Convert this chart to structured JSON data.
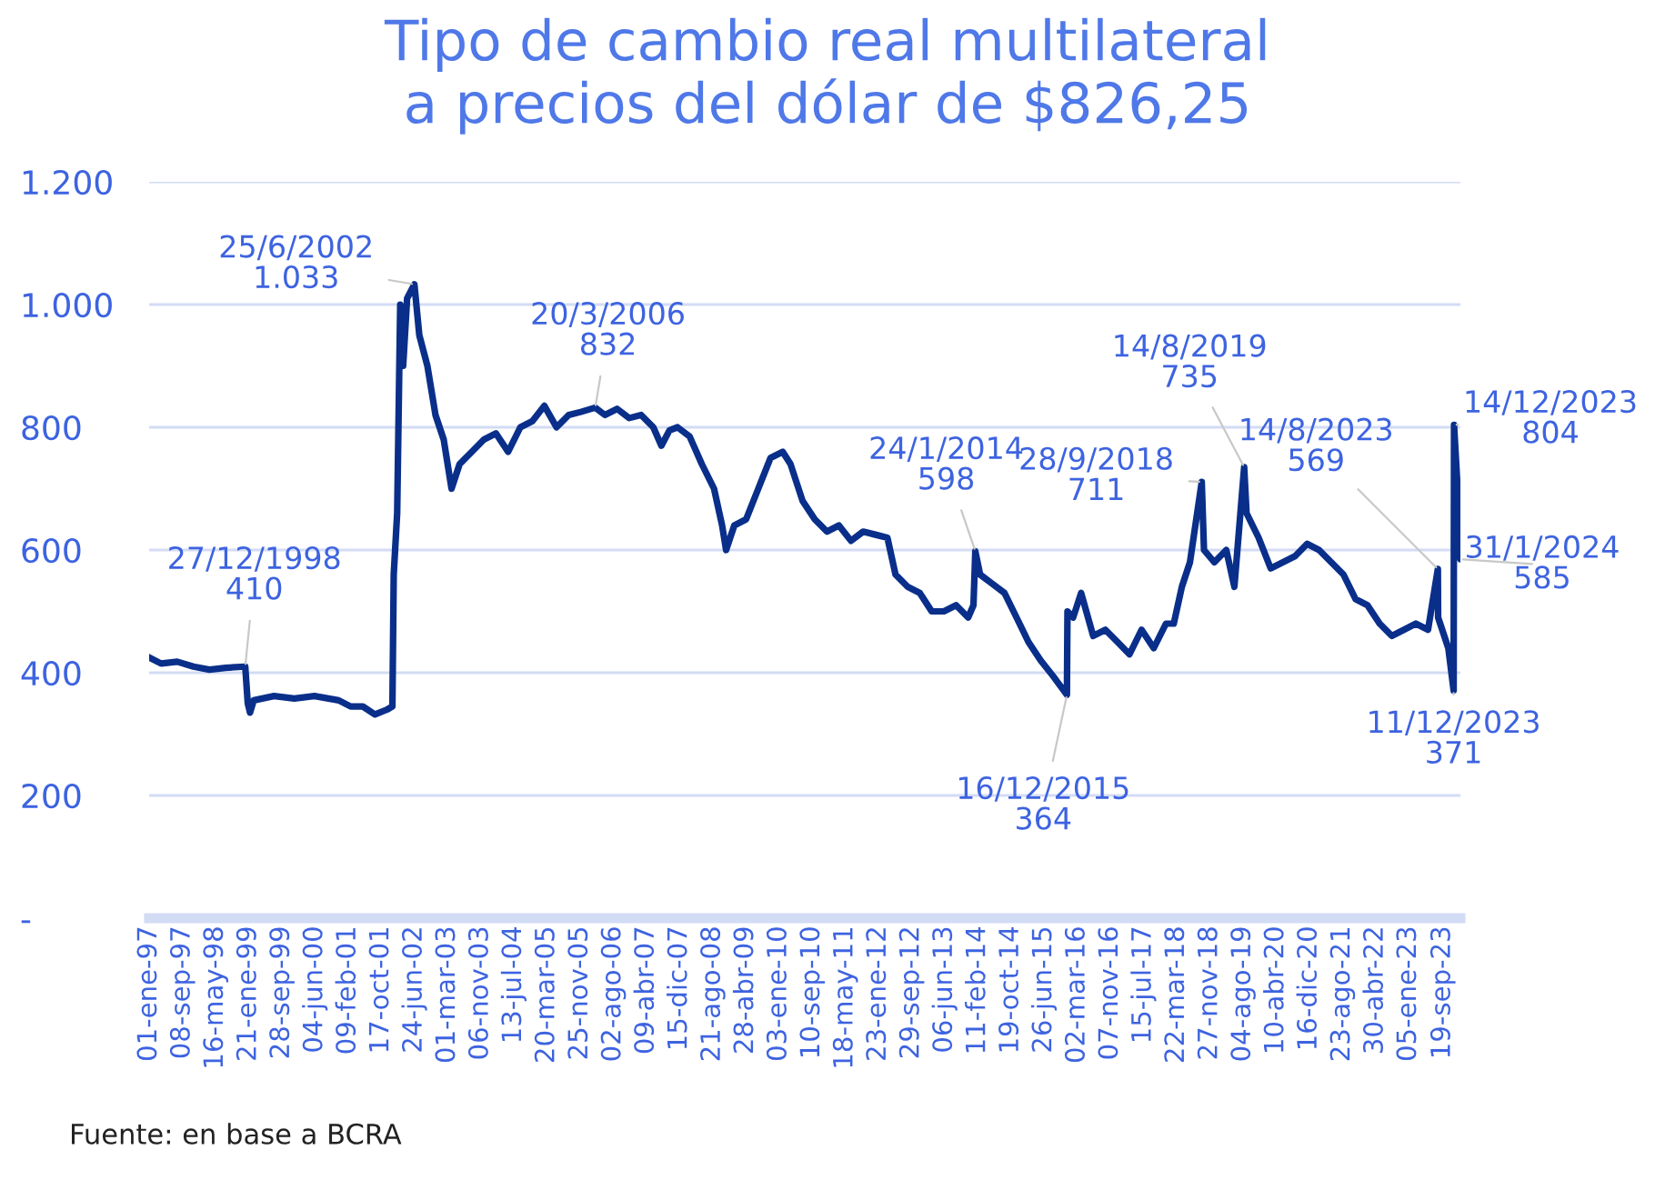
{
  "chart_data": {
    "type": "line",
    "title": "Tipo de cambio real multilateral\na precios del dólar de $826,25",
    "x": [
      "1997-01-01",
      "1997-04-01",
      "1997-08-01",
      "1997-12-01",
      "1998-04-01",
      "1998-08-01",
      "1998-12-27",
      "1999-01-15",
      "1999-02-01",
      "1999-03-01",
      "1999-08-01",
      "2000-01-01",
      "2000-06-01",
      "2000-12-01",
      "2001-03-01",
      "2001-06-01",
      "2001-09-01",
      "2001-12-01",
      "2002-01-10",
      "2002-01-20",
      "2002-02-15",
      "2002-03-10",
      "2002-04-01",
      "2002-05-01",
      "2002-06-25",
      "2002-08-01",
      "2002-10-01",
      "2002-12-01",
      "2003-02-01",
      "2003-04-01",
      "2003-06-01",
      "2003-09-01",
      "2003-12-01",
      "2004-03-01",
      "2004-06-01",
      "2004-09-01",
      "2004-12-01",
      "2005-03-01",
      "2005-06-01",
      "2005-09-01",
      "2005-12-01",
      "2006-03-20",
      "2006-06-01",
      "2006-09-01",
      "2006-12-01",
      "2007-03-01",
      "2007-06-01",
      "2007-08-01",
      "2007-10-01",
      "2007-12-01",
      "2008-03-01",
      "2008-06-01",
      "2008-09-01",
      "2008-11-01",
      "2008-12-01",
      "2009-02-01",
      "2009-05-01",
      "2009-08-01",
      "2009-11-01",
      "2010-02-01",
      "2010-04-01",
      "2010-07-01",
      "2010-10-01",
      "2011-01-01",
      "2011-04-01",
      "2011-07-01",
      "2011-10-01",
      "2012-01-01",
      "2012-04-01",
      "2012-06-01",
      "2012-09-01",
      "2012-12-01",
      "2013-03-01",
      "2013-06-01",
      "2013-09-01",
      "2013-12-01",
      "2014-01-10",
      "2014-01-24",
      "2014-03-01",
      "2014-06-01",
      "2014-09-01",
      "2014-12-01",
      "2015-03-01",
      "2015-06-01",
      "2015-09-01",
      "2015-12-16",
      "2015-12-20",
      "2016-02-01",
      "2016-04-01",
      "2016-07-01",
      "2016-10-01",
      "2017-01-01",
      "2017-04-01",
      "2017-07-01",
      "2017-10-01",
      "2018-01-01",
      "2018-03-01",
      "2018-05-01",
      "2018-07-01",
      "2018-09-28",
      "2018-10-15",
      "2019-01-01",
      "2019-04-01",
      "2019-06-01",
      "2019-08-14",
      "2019-09-01",
      "2019-12-01",
      "2020-03-01",
      "2020-06-01",
      "2020-09-01",
      "2020-12-01",
      "2021-03-01",
      "2021-06-01",
      "2021-09-01",
      "2021-12-01",
      "2022-03-01",
      "2022-06-01",
      "2022-09-01",
      "2022-12-01",
      "2023-03-01",
      "2023-06-01",
      "2023-08-14",
      "2023-08-16",
      "2023-11-01",
      "2023-12-11",
      "2023-12-14",
      "2024-01-10",
      "2024-01-31"
    ],
    "series": [
      {
        "color": "#0a2f8a",
        "values": [
          425,
          415,
          418,
          410,
          405,
          408,
          410,
          350,
          335,
          355,
          362,
          358,
          362,
          355,
          345,
          345,
          332,
          340,
          345,
          560,
          660,
          1000,
          900,
          1010,
          1033,
          950,
          900,
          820,
          780,
          700,
          740,
          760,
          780,
          790,
          760,
          800,
          810,
          835,
          800,
          820,
          825,
          832,
          820,
          830,
          815,
          820,
          800,
          770,
          795,
          800,
          785,
          740,
          700,
          640,
          600,
          640,
          650,
          700,
          750,
          760,
          740,
          680,
          650,
          630,
          640,
          615,
          630,
          625,
          620,
          560,
          540,
          530,
          500,
          500,
          510,
          490,
          510,
          598,
          560,
          545,
          530,
          490,
          450,
          420,
          395,
          364,
          500,
          490,
          530,
          460,
          470,
          450,
          430,
          470,
          440,
          480,
          480,
          540,
          580,
          711,
          600,
          580,
          600,
          540,
          735,
          660,
          620,
          570,
          580,
          590,
          610,
          600,
          580,
          560,
          520,
          510,
          480,
          460,
          470,
          480,
          470,
          569,
          490,
          440,
          371,
          804,
          700,
          585
        ]
      }
    ],
    "xlim": [
      "1997-01-01",
      "2024-01-31"
    ],
    "xticks": [
      {
        "value": "1997-01-01",
        "label": "01-ene-97"
      },
      {
        "value": "1997-09-08",
        "label": "08-sep-97"
      },
      {
        "value": "1998-05-16",
        "label": "16-may-98"
      },
      {
        "value": "1999-01-21",
        "label": "21-ene-99"
      },
      {
        "value": "1999-09-28",
        "label": "28-sep-99"
      },
      {
        "value": "2000-06-04",
        "label": "04-jun-00"
      },
      {
        "value": "2001-02-09",
        "label": "09-feb-01"
      },
      {
        "value": "2001-10-17",
        "label": "17-oct-01"
      },
      {
        "value": "2002-06-24",
        "label": "24-jun-02"
      },
      {
        "value": "2003-03-01",
        "label": "01-mar-03"
      },
      {
        "value": "2003-11-06",
        "label": "06-nov-03"
      },
      {
        "value": "2004-07-13",
        "label": "13-jul-04"
      },
      {
        "value": "2005-03-20",
        "label": "20-mar-05"
      },
      {
        "value": "2005-11-25",
        "label": "25-nov-05"
      },
      {
        "value": "2006-08-02",
        "label": "02-ago-06"
      },
      {
        "value": "2007-04-09",
        "label": "09-abr-07"
      },
      {
        "value": "2007-12-15",
        "label": "15-dic-07"
      },
      {
        "value": "2008-08-21",
        "label": "21-ago-08"
      },
      {
        "value": "2009-04-28",
        "label": "28-abr-09"
      },
      {
        "value": "2010-01-03",
        "label": "03-ene-10"
      },
      {
        "value": "2010-09-10",
        "label": "10-sep-10"
      },
      {
        "value": "2011-05-18",
        "label": "18-may-11"
      },
      {
        "value": "2012-01-23",
        "label": "23-ene-12"
      },
      {
        "value": "2012-09-29",
        "label": "29-sep-12"
      },
      {
        "value": "2013-06-06",
        "label": "06-jun-13"
      },
      {
        "value": "2014-02-11",
        "label": "11-feb-14"
      },
      {
        "value": "2014-10-19",
        "label": "19-oct-14"
      },
      {
        "value": "2015-06-26",
        "label": "26-jun-15"
      },
      {
        "value": "2016-03-02",
        "label": "02-mar-16"
      },
      {
        "value": "2016-11-07",
        "label": "07-nov-16"
      },
      {
        "value": "2017-07-15",
        "label": "15-jul-17"
      },
      {
        "value": "2018-03-22",
        "label": "22-mar-18"
      },
      {
        "value": "2018-11-27",
        "label": "27-nov-18"
      },
      {
        "value": "2019-08-04",
        "label": "04-ago-19"
      },
      {
        "value": "2020-04-10",
        "label": "10-abr-20"
      },
      {
        "value": "2020-12-16",
        "label": "16-dic-20"
      },
      {
        "value": "2021-08-23",
        "label": "23-ago-21"
      },
      {
        "value": "2022-04-30",
        "label": "30-abr-22"
      },
      {
        "value": "2023-01-05",
        "label": "05-ene-23"
      },
      {
        "value": "2023-09-19",
        "label": "19-sep-23"
      }
    ],
    "ylim": [
      0,
      1200
    ],
    "yticks": [
      {
        "value": 0,
        "label": "-"
      },
      {
        "value": 200,
        "label": "200"
      },
      {
        "value": 400,
        "label": "400"
      },
      {
        "value": 600,
        "label": "600"
      },
      {
        "value": 800,
        "label": "800"
      },
      {
        "value": 1000,
        "label": "1.000"
      },
      {
        "value": 1200,
        "label": "1.200"
      }
    ],
    "grid": "y",
    "marker": "none",
    "line_style": "solid",
    "annotations": [
      {
        "text": "27/12/1998\n410",
        "x": "1998-12-27",
        "y": 410
      },
      {
        "text": "25/6/2002\n1.033",
        "x": "2002-06-25",
        "y": 1033
      },
      {
        "text": "20/3/2006\n832",
        "x": "2006-03-20",
        "y": 832
      },
      {
        "text": "24/1/2014\n598",
        "x": "2014-01-24",
        "y": 598
      },
      {
        "text": "16/12/2015\n364",
        "x": "2015-12-16",
        "y": 364
      },
      {
        "text": "28/9/2018\n711",
        "x": "2018-09-28",
        "y": 711
      },
      {
        "text": "14/8/2019\n735",
        "x": "2019-08-14",
        "y": 735
      },
      {
        "text": "14/8/2023\n569",
        "x": "2023-08-14",
        "y": 569
      },
      {
        "text": "11/12/2023\n371",
        "x": "2023-12-11",
        "y": 371
      },
      {
        "text": "14/12/2023\n804",
        "x": "2023-12-14",
        "y": 804
      },
      {
        "text": "31/1/2024\n585",
        "x": "2024-01-31",
        "y": 585
      },
      "Fuente: en base a BCRA"
    ]
  }
}
